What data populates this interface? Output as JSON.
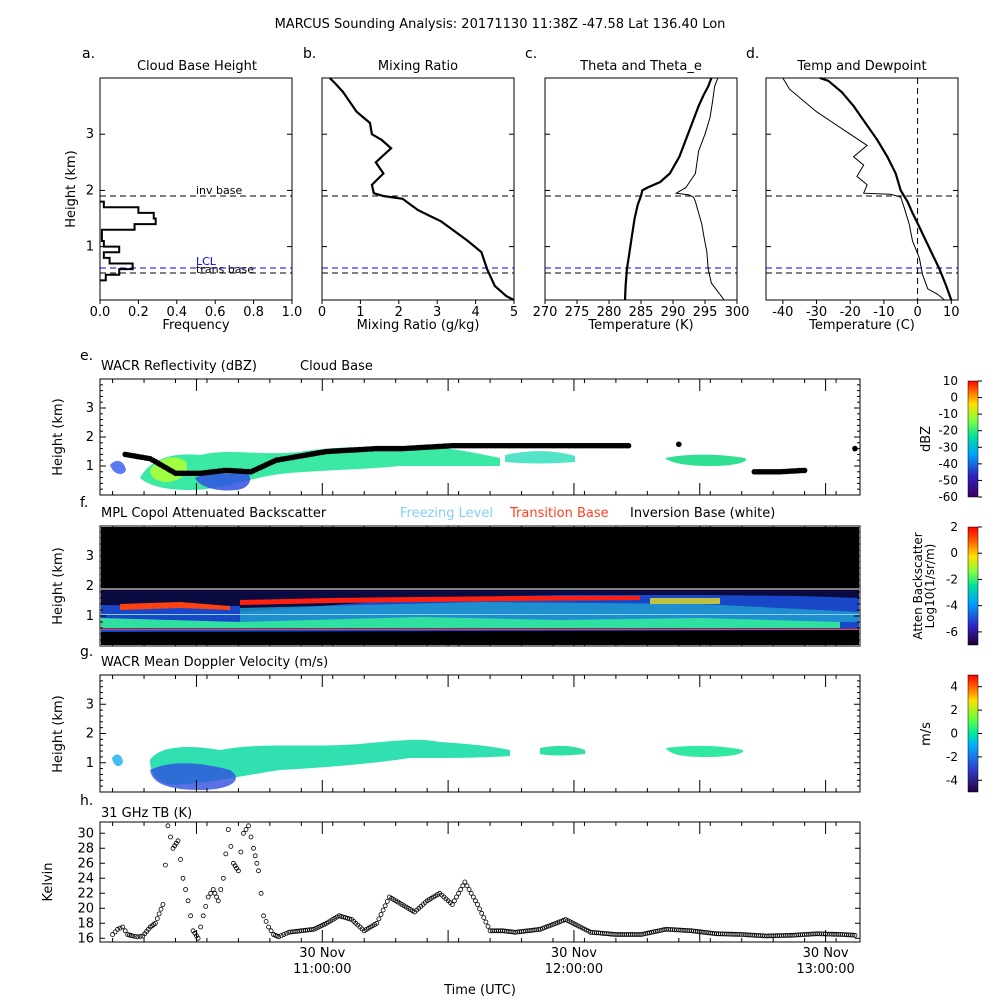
{
  "figure": {
    "title": "MARCUS Sounding Analysis: 20171130 11:38Z   -47.58 Lat  136.40 Lon",
    "xlabel": "Time (UTC)",
    "time_ticks": [
      {
        "t": 10.6333,
        "date": "30 Nov",
        "time": "11:00:00"
      },
      {
        "t": 11.6333,
        "date": "30 Nov",
        "time": "12:00:00"
      },
      {
        "t": 12.6333,
        "date": "30 Nov",
        "time": "13:00:00"
      }
    ],
    "time_range": [
      9.75,
      12.77
    ]
  },
  "chart_data": [
    {
      "id": "a",
      "type": "line",
      "panel_letter": "a.",
      "title": "Cloud Base Height",
      "xlabel": "Frequency",
      "ylabel": "Height (km)",
      "xlim": [
        0,
        1.0
      ],
      "ylim": [
        0.05,
        4.0
      ],
      "xticks": [
        "0.0",
        "0.2",
        "0.4",
        "0.6",
        "0.8",
        "1.0"
      ],
      "yticks": [
        "1",
        "2",
        "3"
      ],
      "histogram": {
        "bin_edges_km": [
          0.4,
          0.5,
          0.6,
          0.7,
          0.8,
          0.9,
          1.0,
          1.1,
          1.2,
          1.3,
          1.4,
          1.5,
          1.6,
          1.7,
          1.8
        ],
        "frequency": [
          0.03,
          0.1,
          0.17,
          0.05,
          0.02,
          0.1,
          0.02,
          0.01,
          0.01,
          0.18,
          0.29,
          0.28,
          0.2,
          0.02
        ]
      },
      "hlines": [
        {
          "label": "inv base",
          "y": 1.9,
          "color": "#000000"
        },
        {
          "label": "LCL",
          "y": 0.62,
          "color": "#0000ff"
        },
        {
          "label": "trans base",
          "y": 0.53,
          "color": "#000000"
        }
      ]
    },
    {
      "id": "b",
      "type": "line",
      "panel_letter": "b.",
      "title": "Mixing Ratio",
      "xlabel": "Mixing Ratio (g/kg)",
      "ylabel": "",
      "xlim": [
        0,
        5
      ],
      "ylim": [
        0.05,
        4.0
      ],
      "xticks": [
        "0",
        "1",
        "2",
        "3",
        "4",
        "5"
      ],
      "series": [
        {
          "x": [
            5.0,
            4.8,
            4.5,
            4.3,
            4.15,
            3.8,
            3.4,
            3.1,
            2.8,
            2.5,
            2.3,
            2.1,
            1.6,
            1.35,
            1.3,
            1.6,
            1.4,
            1.8,
            1.55,
            1.3,
            1.25,
            0.9,
            0.7,
            0.55,
            0.35,
            0.2
          ],
          "y": [
            0.05,
            0.12,
            0.3,
            0.6,
            0.9,
            1.1,
            1.3,
            1.45,
            1.55,
            1.65,
            1.75,
            1.85,
            1.9,
            1.95,
            2.1,
            2.3,
            2.5,
            2.75,
            2.9,
            3.0,
            3.2,
            3.4,
            3.6,
            3.75,
            3.9,
            4.0
          ]
        }
      ],
      "hlines": [
        {
          "y": 1.9,
          "color": "#000000"
        },
        {
          "y": 0.62,
          "color": "#0000ff"
        },
        {
          "y": 0.53,
          "color": "#000000"
        }
      ]
    },
    {
      "id": "c",
      "type": "line",
      "panel_letter": "c.",
      "title": "Theta and Theta_e",
      "xlabel": "Temperature (K)",
      "ylabel": "",
      "xlim": [
        270,
        300
      ],
      "ylim": [
        0.05,
        4.0
      ],
      "xticks": [
        "270",
        "275",
        "280",
        "285",
        "290",
        "295",
        "300"
      ],
      "series": [
        {
          "name": "",
          "x": [
            282.5,
            282.6,
            282.8,
            283.2,
            283.6,
            284.0,
            284.5,
            285.0,
            285.2,
            286,
            288,
            289.5,
            291,
            292,
            293,
            294,
            294.8,
            295.5,
            296
          ],
          "y": [
            0.05,
            0.3,
            0.6,
            0.9,
            1.2,
            1.5,
            1.75,
            1.9,
            2.0,
            2.05,
            2.15,
            2.3,
            2.6,
            2.9,
            3.2,
            3.5,
            3.7,
            3.85,
            4.0
          ]
        },
        {
          "name": "",
          "x": [
            298,
            297,
            296,
            295.5,
            295.3,
            294.8,
            294.5,
            294,
            293.5,
            293.2,
            292.5,
            290.5,
            292,
            293.5,
            294.0,
            295.0,
            295.8,
            296.2,
            296.5,
            297
          ],
          "y": [
            0.05,
            0.2,
            0.35,
            0.6,
            0.9,
            1.2,
            1.4,
            1.6,
            1.8,
            1.88,
            1.92,
            1.95,
            2.05,
            2.3,
            2.7,
            3.0,
            3.3,
            3.6,
            3.85,
            4.0
          ]
        }
      ],
      "hlines": [
        {
          "y": 1.9,
          "color": "#000000"
        },
        {
          "y": 0.62,
          "color": "#0000ff"
        },
        {
          "y": 0.53,
          "color": "#000000"
        }
      ]
    },
    {
      "id": "d",
      "type": "line",
      "panel_letter": "d.",
      "title": "Temp and Dewpoint",
      "xlabel": "Temperature (C)",
      "ylabel": "",
      "xlim": [
        -45,
        12
      ],
      "ylim": [
        0.05,
        4.0
      ],
      "xticks": [
        "-40",
        "-30",
        "-20",
        "-10",
        "0",
        "10"
      ],
      "vline_x": 0,
      "series": [
        {
          "name": "",
          "x": [
            10,
            8.5,
            6.5,
            4.5,
            2.5,
            0.5,
            -1.5,
            -3,
            -4,
            -5,
            -6.5,
            -9,
            -12,
            -15.5,
            -19,
            -22.5,
            -26.5,
            -29
          ],
          "y": [
            0.05,
            0.3,
            0.6,
            0.85,
            1.1,
            1.35,
            1.6,
            1.8,
            1.9,
            2.0,
            2.3,
            2.6,
            2.9,
            3.2,
            3.5,
            3.75,
            3.95,
            4.0
          ]
        },
        {
          "name": "",
          "x": [
            8,
            6,
            3,
            1.5,
            0.5,
            -1.5,
            -2.5,
            -4,
            -5,
            -8,
            -16,
            -15,
            -18,
            -16,
            -19,
            -15,
            -20,
            -25,
            -30,
            -38,
            -40
          ],
          "y": [
            0.05,
            0.15,
            0.25,
            0.5,
            0.8,
            1.1,
            1.4,
            1.7,
            1.88,
            1.93,
            1.95,
            2.1,
            2.25,
            2.45,
            2.6,
            2.8,
            3.0,
            3.2,
            3.4,
            3.8,
            4.0
          ]
        }
      ],
      "hlines": [
        {
          "y": 1.9,
          "color": "#000000"
        },
        {
          "y": 0.62,
          "color": "#0000ff"
        },
        {
          "y": 0.53,
          "color": "#000000"
        }
      ]
    },
    {
      "id": "e",
      "type": "heatmap",
      "panel_letter": "e.",
      "title": "WACR Reflectivity (dBZ)",
      "subtitle": "Cloud Base",
      "ylabel": "Height (km)",
      "ylim": [
        0,
        4.0
      ],
      "yticks": [
        "1",
        "2",
        "3"
      ],
      "colorbar": {
        "label": "dBZ",
        "ticks": [
          "10",
          "0",
          "-10",
          "-20",
          "-30",
          "-40",
          "-50",
          "-60"
        ],
        "range": [
          -60,
          10
        ]
      },
      "cloud_base_km": [
        [
          9.85,
          1.4
        ],
        [
          9.95,
          1.25
        ],
        [
          10.05,
          0.75
        ],
        [
          10.15,
          0.75
        ],
        [
          10.25,
          0.85
        ],
        [
          10.35,
          0.8
        ],
        [
          10.45,
          1.2
        ],
        [
          10.55,
          1.35
        ],
        [
          10.65,
          1.5
        ],
        [
          10.75,
          1.55
        ],
        [
          10.85,
          1.6
        ],
        [
          10.95,
          1.6
        ],
        [
          11.05,
          1.65
        ],
        [
          11.15,
          1.7
        ],
        [
          11.25,
          1.7
        ],
        [
          11.35,
          1.7
        ],
        [
          11.45,
          1.7
        ],
        [
          11.55,
          1.7
        ],
        [
          11.65,
          1.7
        ],
        [
          11.75,
          1.7
        ],
        [
          11.85,
          1.7
        ],
        [
          12.05,
          1.75
        ],
        [
          12.35,
          0.8
        ],
        [
          12.45,
          0.8
        ],
        [
          12.55,
          0.85
        ],
        [
          12.75,
          1.6
        ]
      ],
      "echo_top_km": [
        [
          9.9,
          1.3
        ],
        [
          10.2,
          1.7
        ],
        [
          10.5,
          1.85
        ],
        [
          10.8,
          2.0
        ],
        [
          11.0,
          1.95
        ],
        [
          11.3,
          1.85
        ],
        [
          11.6,
          1.7
        ],
        [
          11.9,
          1.5
        ],
        [
          12.1,
          1.5
        ]
      ]
    },
    {
      "id": "f",
      "type": "heatmap",
      "panel_letter": "f.",
      "title": "MPL Copol Attenuated Backscatter",
      "ylabel": "Height (km)",
      "ylim": [
        0,
        4.0
      ],
      "yticks": [
        "1",
        "2",
        "3"
      ],
      "legend": [
        {
          "label": "Freezing Level",
          "color": "#87cefa"
        },
        {
          "label": "Transition Base",
          "color": "#ff4020"
        },
        {
          "label": "Inversion Base (white)",
          "color": "#000000"
        }
      ],
      "colorbar": {
        "label": "Atten Backscatter",
        "label2": "Log10(1/sr/m)",
        "ticks": [
          "2",
          "0",
          "-2",
          "-4",
          "-6"
        ],
        "range": [
          -7,
          2
        ]
      },
      "inversion_base_km": 1.9,
      "freezing_level_km": 1.05,
      "transition_base_km": 0.55
    },
    {
      "id": "g",
      "type": "heatmap",
      "panel_letter": "g.",
      "title": "WACR Mean Doppler Velocity (m/s)",
      "ylabel": "Height (km)",
      "ylim": [
        0,
        4.0
      ],
      "yticks": [
        "1",
        "2",
        "3"
      ],
      "colorbar": {
        "label": "m/s",
        "ticks": [
          "4",
          "2",
          "0",
          "-2",
          "-4"
        ],
        "range": [
          -5,
          5
        ]
      }
    },
    {
      "id": "h",
      "type": "scatter",
      "panel_letter": "h.",
      "title": "31 GHz TB (K)",
      "ylabel": "Kelvin",
      "ylim": [
        15.5,
        31.5
      ],
      "yticks": [
        "16",
        "18",
        "20",
        "22",
        "24",
        "26",
        "28",
        "30"
      ],
      "x": [
        9.8,
        9.82,
        9.84,
        9.86,
        9.88,
        9.9,
        9.92,
        9.95,
        9.97,
        10.0,
        10.02,
        10.04,
        10.06,
        10.08,
        10.1,
        10.12,
        10.14,
        10.16,
        10.18,
        10.2,
        10.22,
        10.24,
        10.26,
        10.28,
        10.3,
        10.32,
        10.34,
        10.36,
        10.38,
        10.4,
        10.42,
        10.44,
        10.46,
        10.48,
        10.5,
        10.55,
        10.6,
        10.65,
        10.7,
        10.75,
        10.8,
        10.85,
        10.9,
        10.95,
        11.0,
        11.05,
        11.1,
        11.15,
        11.2,
        11.25,
        11.3,
        11.35,
        11.4,
        11.5,
        11.6,
        11.7,
        11.8,
        11.9,
        12.0,
        12.1,
        12.2,
        12.3,
        12.4,
        12.5,
        12.6,
        12.7,
        12.75
      ],
      "y": [
        16.5,
        17.2,
        17.5,
        16.5,
        16.3,
        16.2,
        16.3,
        17.5,
        18.0,
        20.5,
        31.0,
        28.0,
        29.0,
        24.0,
        21.0,
        17.0,
        16.0,
        19.0,
        21.5,
        22.5,
        21.0,
        24.0,
        30.5,
        26.0,
        25.0,
        30.0,
        31.0,
        28.0,
        25.0,
        19.0,
        17.5,
        16.5,
        16.2,
        16.5,
        16.8,
        17.0,
        17.2,
        18.0,
        19.0,
        18.5,
        17.0,
        18.0,
        21.5,
        20.5,
        19.5,
        21.0,
        22.0,
        20.5,
        23.5,
        20.5,
        17.0,
        17.0,
        16.8,
        17.2,
        18.5,
        16.8,
        16.5,
        16.5,
        17.2,
        17.0,
        16.6,
        16.5,
        16.3,
        16.4,
        16.6,
        16.5,
        16.4
      ]
    }
  ]
}
